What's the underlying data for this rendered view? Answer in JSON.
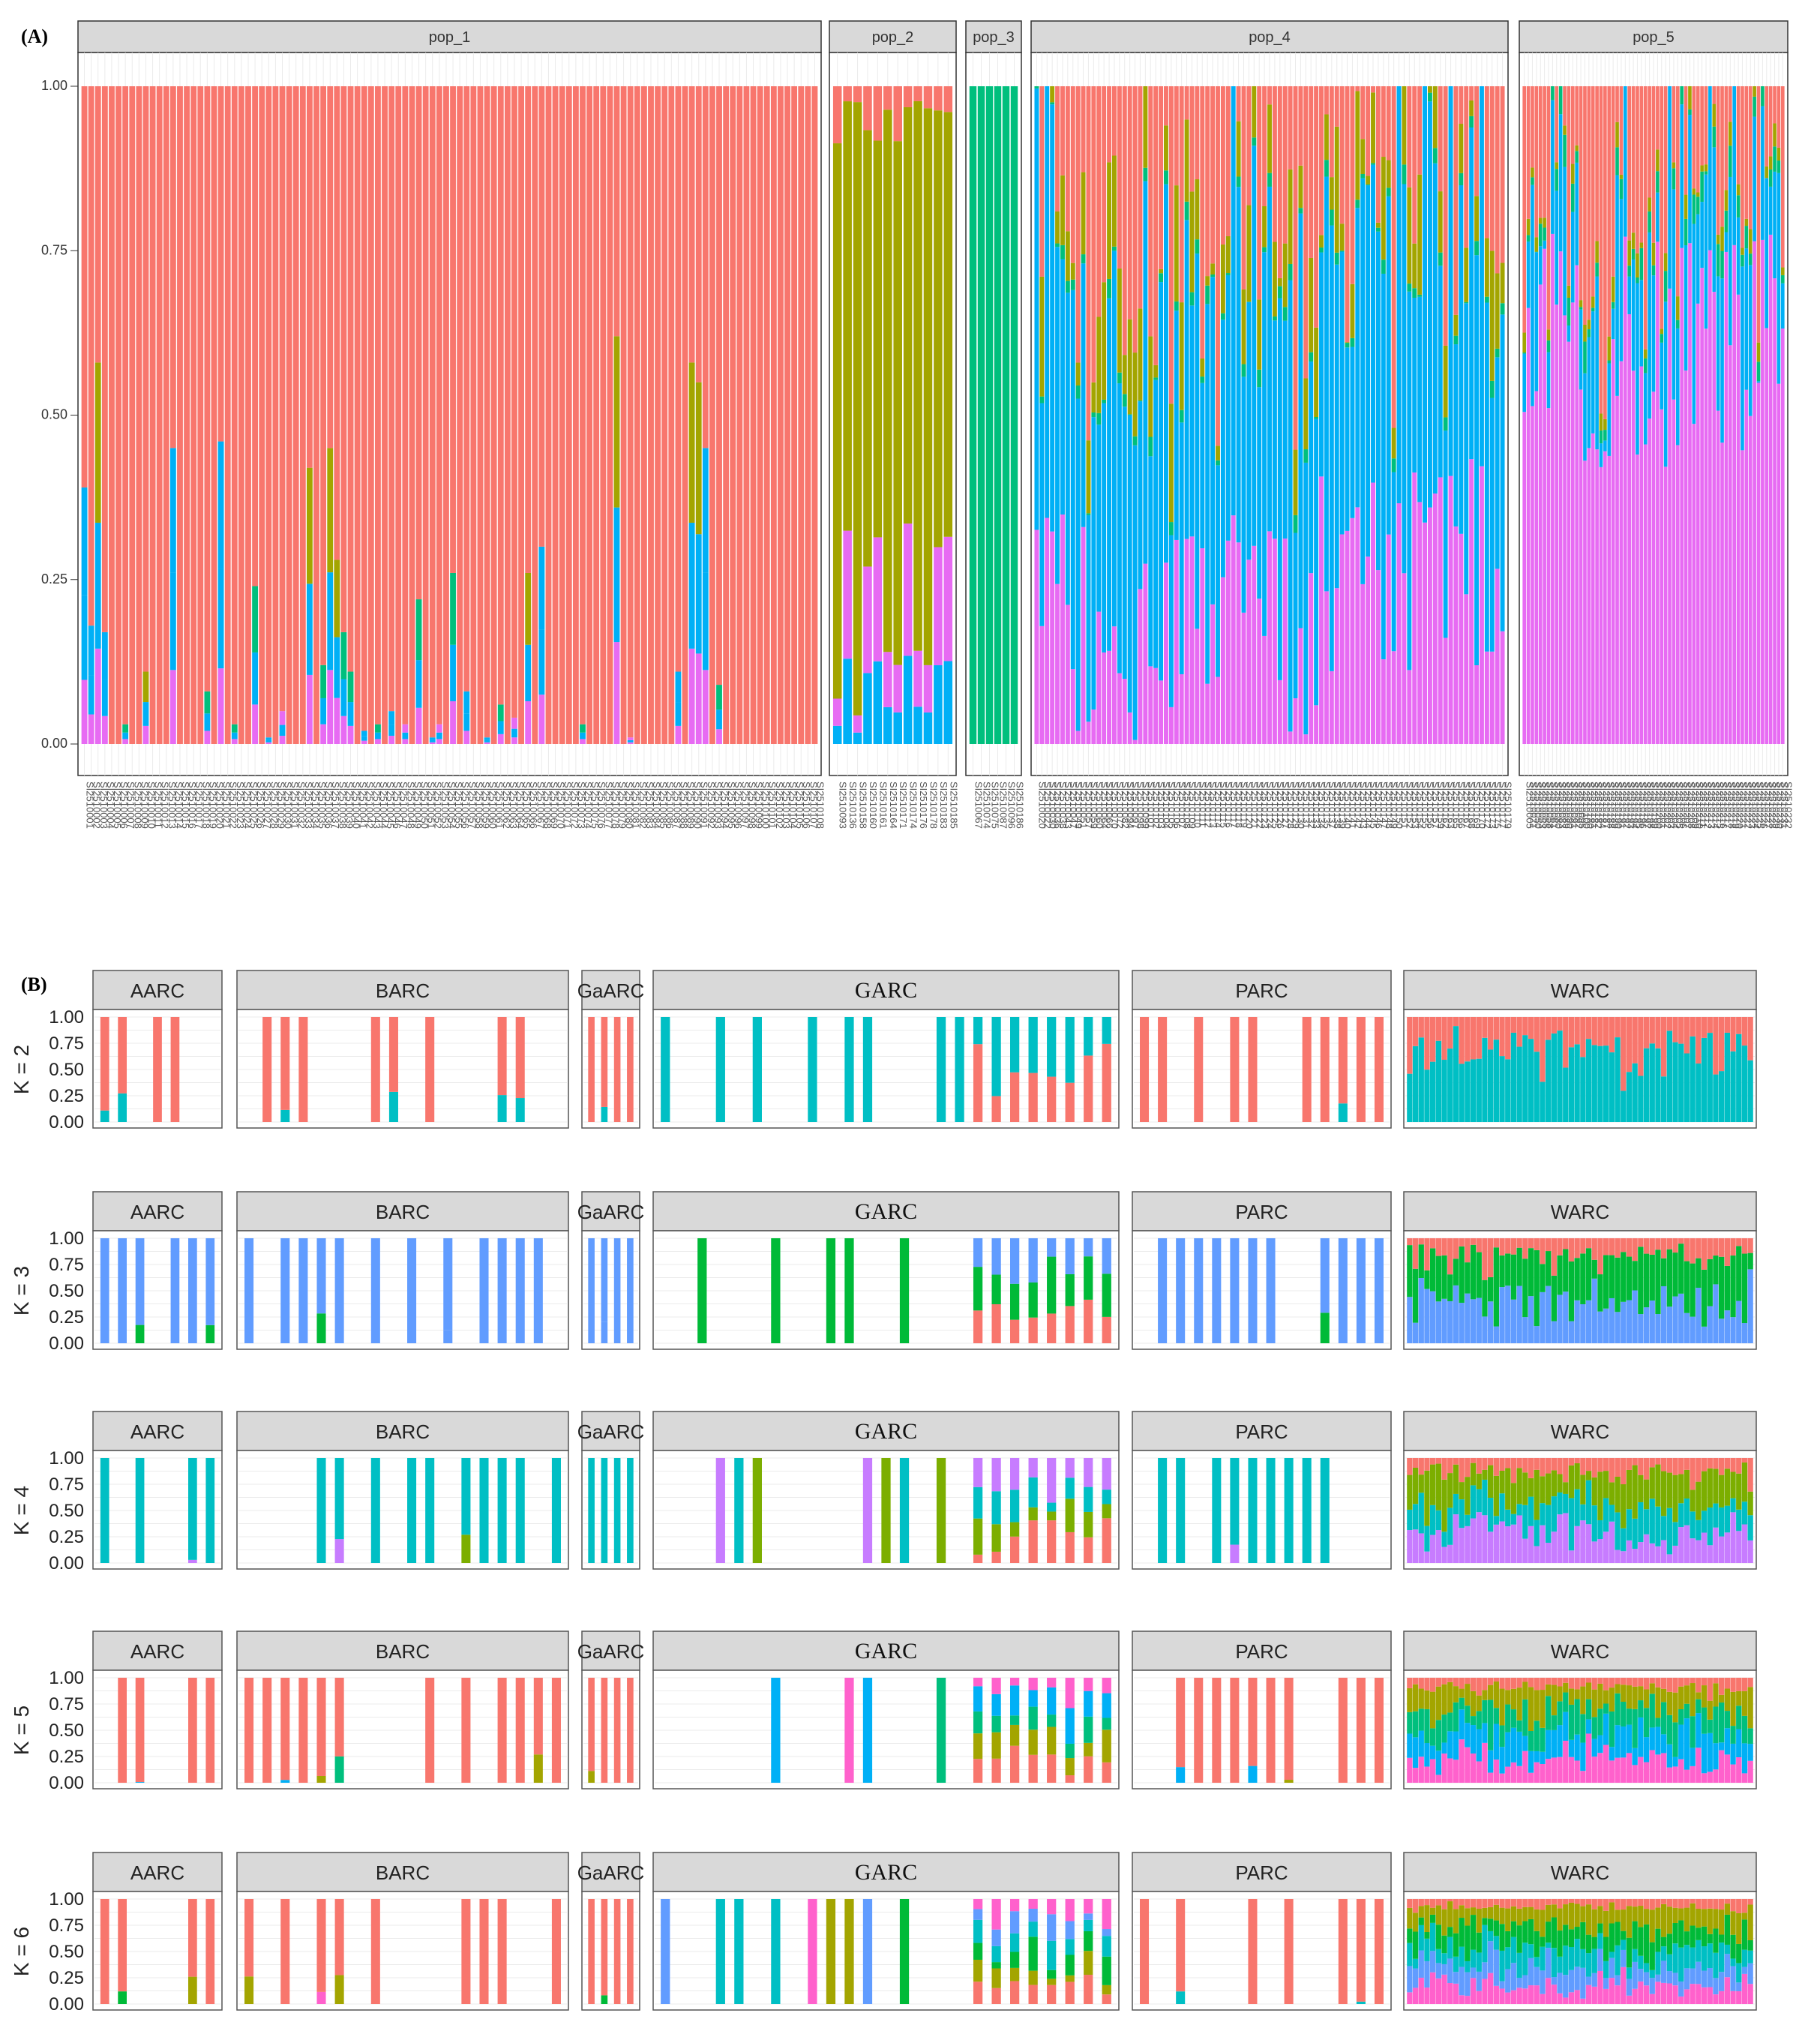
{
  "panel_labels": {
    "a": "(A)",
    "b": "(B)"
  },
  "colors": {
    "red": "#f8766d",
    "olive": "#a3a500",
    "green": "#00bf7d",
    "blue": "#00b0f6",
    "pink": "#e76bf3",
    "teal": "#00bfc4",
    "steelblue": "#619cff",
    "darkgreen": "#00ba38",
    "yellowgreen": "#7cae00",
    "violet": "#c77cff",
    "magenta": "#ff61cc",
    "grey_strip": "#d9d9d9",
    "grid": "#ebebeb"
  },
  "chart_data": [
    {
      "type": "bar",
      "stacked": true,
      "panel": "A",
      "y_ticks": [
        "0.00",
        "0.25",
        "0.50",
        "0.75",
        "1.00"
      ],
      "ylim": [
        0,
        1
      ],
      "grid": true,
      "series_colors": [
        "red",
        "olive",
        "green",
        "blue",
        "pink"
      ],
      "facets": [
        {
          "name": "pop_1",
          "categories": [
            "SI2510001",
            "SI2510002",
            "SI2510003",
            "SI2510004",
            "SI2510005",
            "SI2510006",
            "SI2510007",
            "SI2510008",
            "SI2510009",
            "SI2510010",
            "SI2510011",
            "SI2510012",
            "SI2510013",
            "SI2510014",
            "SI2510015",
            "SI2510016",
            "SI2510017",
            "SI2510018",
            "SI2510019",
            "SI2510020",
            "SI2510021",
            "SI2510022",
            "SI2510023",
            "SI2510024",
            "SI2510025",
            "SI2510026",
            "SI2510027",
            "SI2510028",
            "SI2510029",
            "SI2510030",
            "SI2510031",
            "SI2510032",
            "SI2510033",
            "SI2510034",
            "SI2510035",
            "SI2510036",
            "SI2510037",
            "SI2510038",
            "SI2510039",
            "SI2510040",
            "SI2510041",
            "SI2510042",
            "SI2510043",
            "SI2510044",
            "SI2510045",
            "SI2510046",
            "SI2510047",
            "SI2510048",
            "SI2510049",
            "SI2510050",
            "SI2510051",
            "SI2510052",
            "SI2510053",
            "SI2510054",
            "SI2510055",
            "SI2510056",
            "SI2510057",
            "SI2510058",
            "SI2510059",
            "SI2510060",
            "SI2510061",
            "SI2510062",
            "SI2510063",
            "SI2510064",
            "SI2510065",
            "SI2510066",
            "SI2510067",
            "SI2510068",
            "SI2510069",
            "SI2510070",
            "SI2510071",
            "SI2510072",
            "SI2510073",
            "SI2510074",
            "SI2510075",
            "SI2510076",
            "SI2510077",
            "SI2510078",
            "SI2510079",
            "SI2510080",
            "SI2510081",
            "SI2510082",
            "SI2510083",
            "SI2510084",
            "SI2510085",
            "SI2510086",
            "SI2510087",
            "SI2510088",
            "SI2510089",
            "SI2510090",
            "SI2510091",
            "SI2510092",
            "SI2510093",
            "SI2510094",
            "SI2510095",
            "SI2510096",
            "SI2510097",
            "SI2510098",
            "SI2510099",
            "SI2510100",
            "SI2510101",
            "SI2510102",
            "SI2510103",
            "SI2510104",
            "SI2510105",
            "SI2510106",
            "SI2510107",
            "SI2510108"
          ],
          "dominant": "red",
          "spikes": {
            "1": [
              0.39,
              "blue"
            ],
            "2": [
              0.18,
              "blue"
            ],
            "3": [
              0.58,
              "olive"
            ],
            "4": [
              0.17,
              "blue"
            ],
            "7": [
              0.03,
              "green"
            ],
            "10": [
              0.11,
              "olive"
            ],
            "14": [
              0.45,
              "blue"
            ],
            "19": [
              0.08,
              "green"
            ],
            "21": [
              0.46,
              "blue"
            ],
            "23": [
              0.03,
              "green"
            ],
            "26": [
              0.24,
              "green"
            ],
            "28": [
              0.01,
              "blue"
            ],
            "30": [
              0.05,
              "pink"
            ],
            "34": [
              0.42,
              "olive"
            ],
            "36": [
              0.12,
              "green"
            ],
            "37": [
              0.45,
              "olive"
            ],
            "38": [
              0.28,
              "olive"
            ],
            "39": [
              0.17,
              "green"
            ],
            "40": [
              0.11,
              "green"
            ],
            "42": [
              0.02,
              "blue"
            ],
            "44": [
              0.03,
              "green"
            ],
            "46": [
              0.05,
              "blue"
            ],
            "48": [
              0.03,
              "pink"
            ],
            "50": [
              0.22,
              "green"
            ],
            "52": [
              0.01,
              "blue"
            ],
            "53": [
              0.03,
              "pink"
            ],
            "55": [
              0.26,
              "green"
            ],
            "57": [
              0.08,
              "blue"
            ],
            "60": [
              0.01,
              "blue"
            ],
            "62": [
              0.06,
              "green"
            ],
            "64": [
              0.04,
              "pink"
            ],
            "66": [
              0.26,
              "olive"
            ],
            "68": [
              0.3,
              "blue"
            ],
            "74": [
              0.03,
              "green"
            ],
            "79": [
              0.62,
              "olive"
            ],
            "81": [
              0.01,
              "pink"
            ],
            "88": [
              0.11,
              "blue"
            ],
            "90": [
              0.58,
              "olive"
            ],
            "91": [
              0.55,
              "olive"
            ],
            "92": [
              0.45,
              "blue"
            ],
            "94": [
              0.09,
              "green"
            ]
          }
        },
        {
          "name": "pop_2",
          "categories": [
            "SI2510093",
            "SI2510136",
            "SI2510158",
            "SI2510160",
            "SI2510161",
            "SI2510164",
            "SI2510171",
            "SI2510174",
            "SI2510176",
            "SI2510178",
            "SI2510183",
            "SI2510185"
          ],
          "dominant": "olive"
        },
        {
          "name": "pop_3",
          "categories": [
            "SI2510067",
            "SI2510074",
            "SI2510075",
            "SI2510087",
            "SI2510096",
            "SI2510186"
          ],
          "dominant": "green"
        },
        {
          "name": "pop_4",
          "categories": [
            "SI2510020",
            "SI2510022",
            "SI2510030",
            "SI2510036",
            "SI2510038",
            "SI2510043",
            "SI2510047",
            "SI2510049",
            "SI2510051",
            "SI2510057",
            "SI2510059",
            "SI2510060",
            "SI2510064",
            "SI2510066",
            "SI2510070",
            "SI2510072",
            "SI2510082",
            "SI2510094",
            "SI2510097",
            "SI2510098",
            "SI2510099",
            "SI2510101",
            "SI2510102",
            "SI2510103",
            "SI2510104",
            "SI2510105",
            "SI2510106",
            "SI2510107",
            "SI2510108",
            "SI2510109",
            "SI2510110",
            "SI2510111",
            "SI2510112",
            "SI2510113",
            "SI2510114",
            "SI2510115",
            "SI2510116",
            "SI2510117",
            "SI2510118",
            "SI2510119",
            "SI2510120",
            "SI2510121",
            "SI2510122",
            "SI2510123",
            "SI2510124",
            "SI2510125",
            "SI2510126",
            "SI2510127",
            "SI2510128",
            "SI2510129",
            "SI2510130",
            "SI2510131",
            "SI2510132",
            "SI2510133",
            "SI2510134",
            "SI2510135",
            "SI2510137",
            "SI2510138",
            "SI2510139",
            "SI2510140",
            "SI2510141",
            "SI2510142",
            "SI2510143",
            "SI2510144",
            "SI2510145",
            "SI2510146",
            "SI2510147",
            "SI2510148",
            "SI2510149",
            "SI2510150",
            "SI2510151",
            "SI2510152",
            "SI2510153",
            "SI2510154",
            "SI2510155",
            "SI2510156",
            "SI2510157",
            "SI2510159",
            "SI2510162",
            "SI2510163",
            "SI2510165",
            "SI2510166",
            "SI2510167",
            "SI2510168",
            "SI2510169",
            "SI2510170",
            "SI2510172",
            "SI2510173",
            "SI2510175",
            "SI2510177",
            "SI2510179"
          ],
          "dominant": "mix"
        },
        {
          "name": "pop_5",
          "categories": [
            "SI2510005",
            "SI2510021",
            "SI2510050",
            "SI2510053",
            "SI2510055",
            "SI2510058",
            "SI2510061",
            "SI2510080",
            "SI2510083",
            "SI2510089",
            "SI2510090",
            "SI2510091",
            "SI2510092",
            "SI2510095",
            "SI2510100",
            "SI2510180",
            "SI2510181",
            "SI2510182",
            "SI2510184",
            "SI2510187",
            "SI2510188",
            "SI2510189",
            "SI2510190",
            "SI2510191",
            "SI2510192",
            "SI2510193",
            "SI2510194",
            "SI2510195",
            "SI2510196",
            "SI2510197",
            "SI2510198",
            "SI2510199",
            "SI2510200",
            "SI2510201",
            "SI2510202",
            "SI2510203",
            "SI2510204",
            "SI2510205",
            "SI2510206",
            "SI2510207",
            "SI2510208",
            "SI2510209",
            "SI2510210",
            "SI2510211",
            "SI2510212",
            "SI2510213",
            "SI2510214",
            "SI2510215",
            "SI2510216",
            "SI2510217",
            "SI2510218",
            "SI2510219",
            "SI2510220",
            "SI2510221",
            "SI2510222",
            "SI2510223",
            "SI2510224",
            "SI2510225",
            "SI2510226",
            "SI2510227",
            "SI2510228",
            "SI2510229",
            "SI2510230",
            "SI2510231",
            "SI2510232"
          ],
          "dominant": "pinkmix"
        }
      ]
    },
    {
      "type": "bar",
      "stacked": true,
      "panel": "B",
      "y_ticks": [
        "0.00",
        "0.25",
        "0.50",
        "0.75",
        "1.00"
      ],
      "ylim": [
        0,
        1
      ],
      "grid": true,
      "facets": [
        "AARC",
        "BARC",
        "GaARC",
        "GARC",
        "PARC",
        "WARC"
      ],
      "rows": [
        {
          "label": "K = 2",
          "colors": [
            "red",
            "teal"
          ]
        },
        {
          "label": "K = 3",
          "colors": [
            "red",
            "darkgreen",
            "steelblue"
          ]
        },
        {
          "label": "K = 4",
          "colors": [
            "red",
            "yellowgreen",
            "teal",
            "violet"
          ]
        },
        {
          "label": "K = 5",
          "colors": [
            "red",
            "olive",
            "green",
            "blue",
            "magenta"
          ]
        },
        {
          "label": "K = 6",
          "colors": [
            "red",
            "olive",
            "darkgreen",
            "teal",
            "steelblue",
            "magenta"
          ]
        }
      ]
    }
  ]
}
